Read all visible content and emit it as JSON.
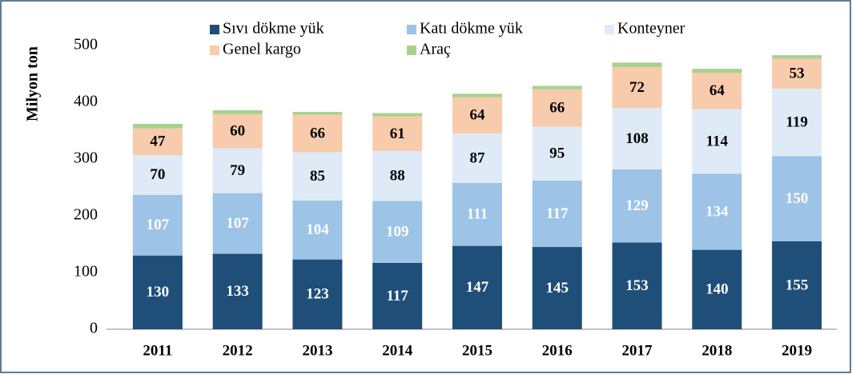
{
  "chart_data": {
    "type": "stacked_bar",
    "y_label": "Milyon ton",
    "categories": [
      "2011",
      "2012",
      "2013",
      "2014",
      "2015",
      "2016",
      "2017",
      "2018",
      "2019"
    ],
    "series": [
      {
        "name": "Sıvı dökme yük",
        "color": "#1f4e79",
        "label_color": "#ffffff",
        "values": [
          130,
          133,
          123,
          117,
          147,
          145,
          153,
          140,
          155
        ]
      },
      {
        "name": "Katı dökme yük",
        "color": "#9dc3e6",
        "label_color": "#ffffff",
        "values": [
          107,
          107,
          104,
          109,
          111,
          117,
          129,
          134,
          150
        ]
      },
      {
        "name": "Konteyner",
        "color": "#deebf7",
        "label_color": "#000000",
        "values": [
          70,
          79,
          85,
          88,
          87,
          95,
          108,
          114,
          119
        ]
      },
      {
        "name": "Genel kargo",
        "color": "#f8cbad",
        "label_color": "#000000",
        "values": [
          47,
          60,
          66,
          61,
          64,
          66,
          72,
          64,
          53
        ]
      },
      {
        "name": "Araç",
        "color": "#a9d18e",
        "show_labels": false,
        "values": [
          8,
          7,
          5,
          6,
          6,
          6,
          8,
          7,
          6
        ]
      }
    ],
    "ylim": [
      0,
      500
    ],
    "yticks": [
      0,
      100,
      200,
      300,
      400,
      500
    ],
    "grid": false
  }
}
